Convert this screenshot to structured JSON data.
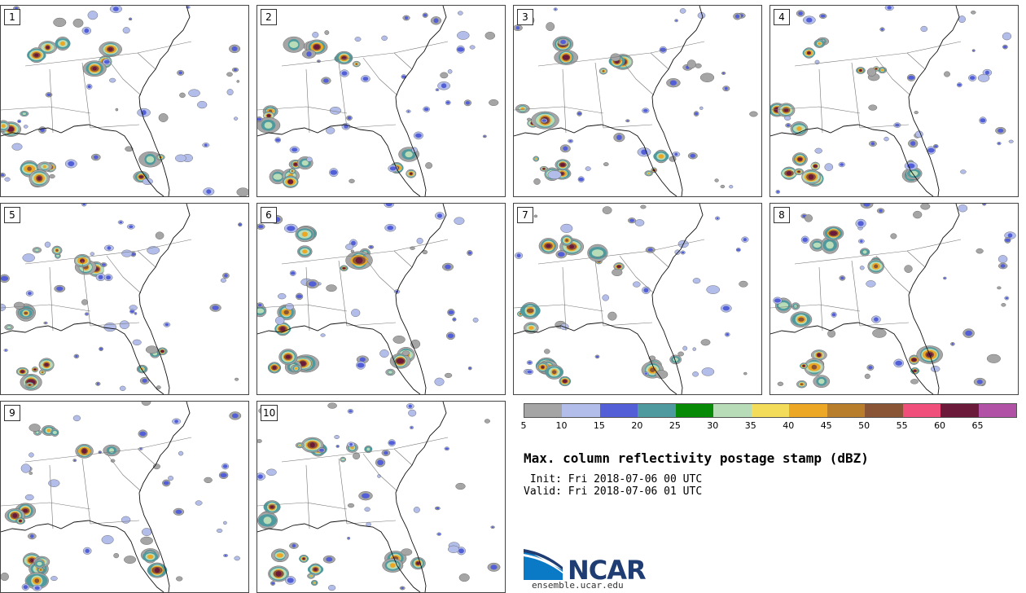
{
  "panels": [
    {
      "label": "1"
    },
    {
      "label": "2"
    },
    {
      "label": "3"
    },
    {
      "label": "4"
    },
    {
      "label": "5"
    },
    {
      "label": "6"
    },
    {
      "label": "7"
    },
    {
      "label": "8"
    },
    {
      "label": "9"
    },
    {
      "label": "10"
    }
  ],
  "colorbar": {
    "colors": [
      "#a5a5a5",
      "#b3bdea",
      "#535fd6",
      "#4f9a9e",
      "#078a06",
      "#b7dcb7",
      "#f3dc5a",
      "#eca825",
      "#b97e2c",
      "#8a5536",
      "#ef4f7a",
      "#6c1a3a",
      "#b152a7"
    ],
    "ticks": [
      "5",
      "10",
      "15",
      "20",
      "25",
      "30",
      "35",
      "40",
      "45",
      "50",
      "55",
      "60",
      "65"
    ]
  },
  "title": "Max. column reflectivity postage stamp (dBZ)",
  "init": " Init: Fri 2018-07-06 00 UTC",
  "valid": "Valid: Fri 2018-07-06 01 UTC",
  "logo": {
    "name": "NCAR",
    "url": "ensemble.ucar.edu"
  }
}
